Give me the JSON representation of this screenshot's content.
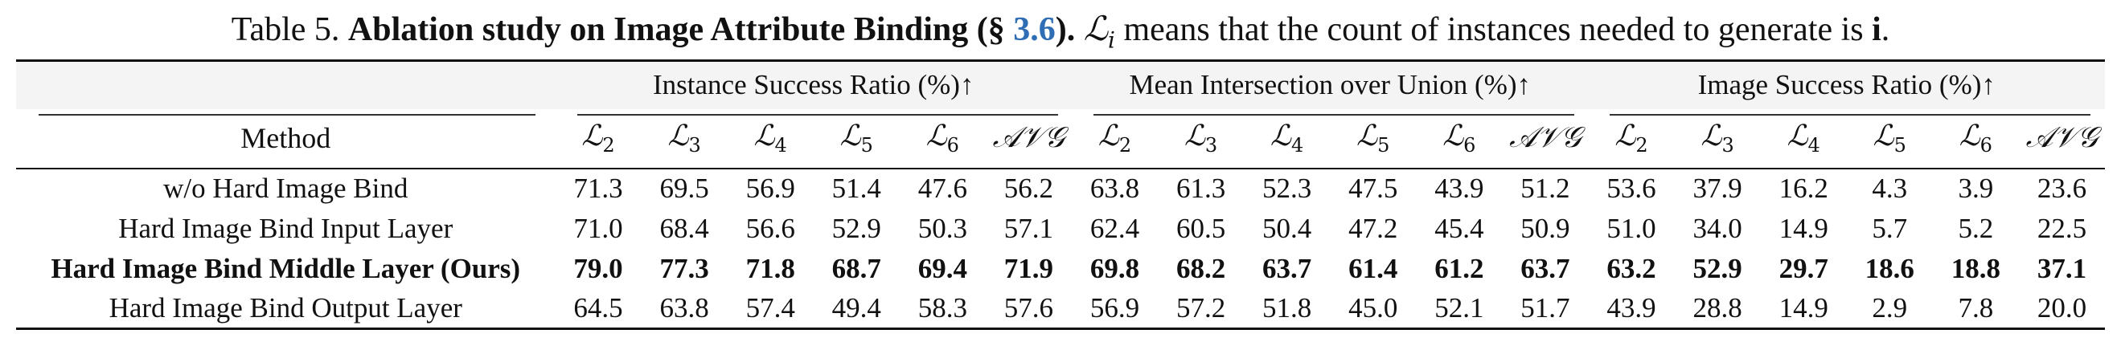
{
  "caption": {
    "prefix": "Table 5.",
    "title": "Ablation study on Image Attribute Binding (§",
    "ref": "3.6",
    "title_end": ").",
    "symbol": "ℒ",
    "symbol_sub": "i",
    "rest": " means that the count of instances needed to generate is ",
    "i_bold": "i",
    "end": "."
  },
  "table": {
    "group_headers": [
      "Instance Success Ratio (%)↑",
      "Mean Intersection over Union (%)↑",
      "Image Success Ratio (%)↑"
    ],
    "method_header": "Method",
    "metric_columns": [
      {
        "sym": "ℒ",
        "sub": "2"
      },
      {
        "sym": "ℒ",
        "sub": "3"
      },
      {
        "sym": "ℒ",
        "sub": "4"
      },
      {
        "sym": "ℒ",
        "sub": "5"
      },
      {
        "sym": "ℒ",
        "sub": "6"
      },
      {
        "sym": "𝒜𝒱𝒢",
        "sub": ""
      }
    ],
    "rows": [
      {
        "method": "w/o Hard Image Bind",
        "bold": false,
        "values": [
          "71.3",
          "69.5",
          "56.9",
          "51.4",
          "47.6",
          "56.2",
          "63.8",
          "61.3",
          "52.3",
          "47.5",
          "43.9",
          "51.2",
          "53.6",
          "37.9",
          "16.2",
          "4.3",
          "3.9",
          "23.6"
        ]
      },
      {
        "method": "Hard Image Bind Input Layer",
        "bold": false,
        "values": [
          "71.0",
          "68.4",
          "56.6",
          "52.9",
          "50.3",
          "57.1",
          "62.4",
          "60.5",
          "50.4",
          "47.2",
          "45.4",
          "50.9",
          "51.0",
          "34.0",
          "14.9",
          "5.7",
          "5.2",
          "22.5"
        ]
      },
      {
        "method": "Hard Image Bind Middle Layer (Ours)",
        "bold": true,
        "values": [
          "79.0",
          "77.3",
          "71.8",
          "68.7",
          "69.4",
          "71.9",
          "69.8",
          "68.2",
          "63.7",
          "61.4",
          "61.2",
          "63.7",
          "63.2",
          "52.9",
          "29.7",
          "18.6",
          "18.8",
          "37.1"
        ]
      },
      {
        "method": "Hard Image Bind Output Layer",
        "bold": false,
        "values": [
          "64.5",
          "63.8",
          "57.4",
          "49.4",
          "58.3",
          "57.6",
          "56.9",
          "57.2",
          "51.8",
          "45.0",
          "52.1",
          "51.7",
          "43.9",
          "28.8",
          "14.9",
          "2.9",
          "7.8",
          "20.0"
        ]
      }
    ]
  }
}
